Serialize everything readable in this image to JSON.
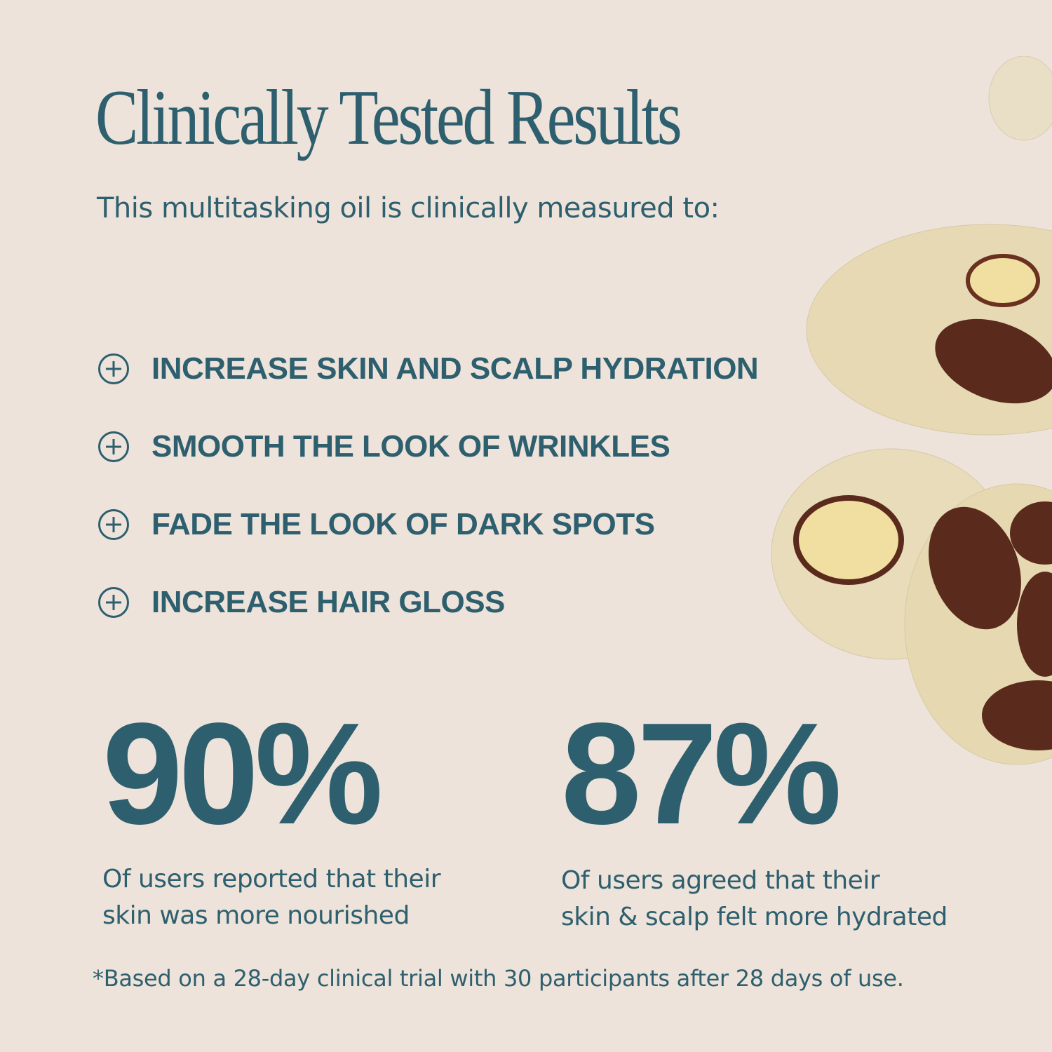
{
  "header": {
    "title": "Clinically Tested Results",
    "subtitle": "This multitasking oil is clinically measured to:"
  },
  "benefits": [
    {
      "icon": "plus-circle-icon",
      "label": "INCREASE SKIN AND SCALP HYDRATION"
    },
    {
      "icon": "plus-circle-icon",
      "label": "SMOOTH THE LOOK OF WRINKLES"
    },
    {
      "icon": "plus-circle-icon",
      "label": "FADE THE LOOK OF DARK SPOTS"
    },
    {
      "icon": "plus-circle-icon",
      "label": "INCREASE HAIR GLOSS"
    }
  ],
  "stats": [
    {
      "value": "90%",
      "line1": "Of users reported that their",
      "line2": "skin was more nourished"
    },
    {
      "value": "87%",
      "line1": "Of users agreed that their",
      "line2": "skin & scalp felt more hydrated"
    }
  ],
  "footnote": "*Based on a 28-day clinical trial with 30 participants after 28 days of use.",
  "colors": {
    "background": "#ede3da",
    "text": "#2e5f6e",
    "nut": "#5a2a1c",
    "oil": "#e8dcb8"
  }
}
